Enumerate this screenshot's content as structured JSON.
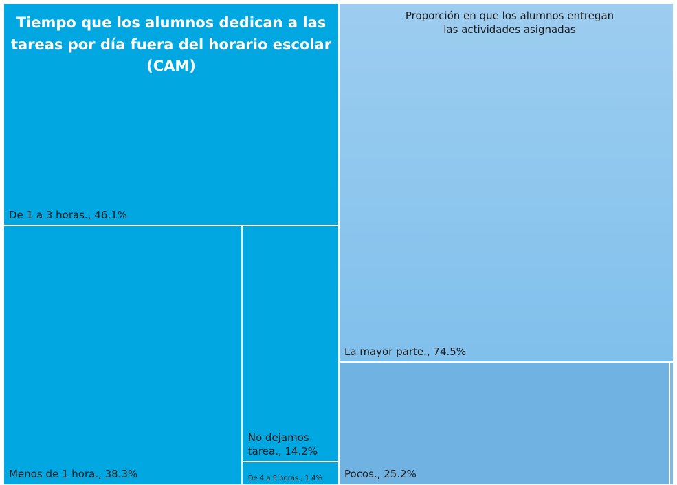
{
  "chart_data": [
    {
      "type": "treemap",
      "title": "Tiempo que los alumnos dedican a las tareas por día fuera del horario escolar (CAM)",
      "values": [
        46.1,
        38.3,
        14.2,
        1.4
      ],
      "value_labels": [
        "De 1 a 3 horas., 46.1%",
        "Menos de 1 hora., 38.3%",
        "No dejamos tarea., 14.2%",
        "De 4 a 5 horas., 1.4%"
      ],
      "color": "#00a7e1",
      "title_color": "#ffffff"
    },
    {
      "type": "treemap",
      "title": "Proporción en que los alumnos entregan las actividades asignadas",
      "values": [
        74.5,
        25.2,
        0.3
      ],
      "value_labels": [
        "La mayor parte., 74.5%",
        "Pocos., 25.2%",
        null
      ],
      "colors": [
        "#92c9ef",
        "#70b3e2",
        "#7cbce8"
      ],
      "title_color": "#1a1a1a"
    }
  ]
}
